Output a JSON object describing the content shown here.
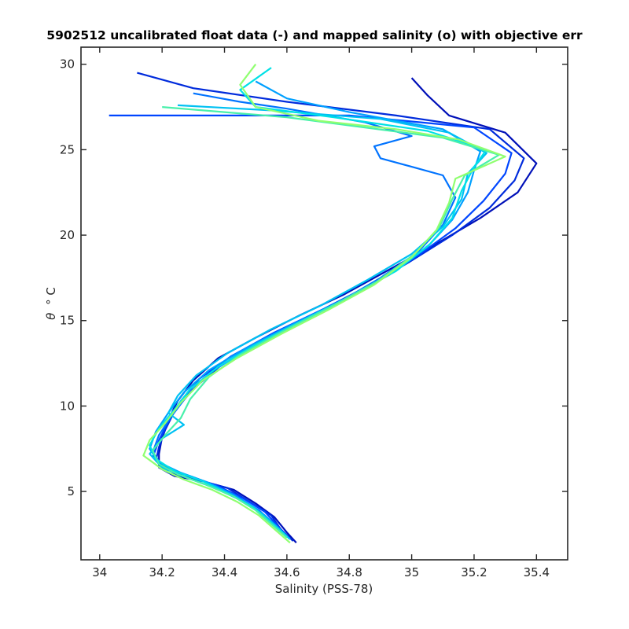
{
  "chart_data": {
    "type": "line",
    "title": "5902512 uncalibrated float data (-) and mapped salinity (o) with objective err",
    "xlabel": "Salinity (PSS-78)",
    "ylabel_symbol": "θ",
    "ylabel_unit": "° C",
    "xlim": [
      33.94,
      35.5
    ],
    "ylim": [
      1,
      31
    ],
    "xticks": [
      34,
      34.2,
      34.4,
      34.6,
      34.8,
      35,
      35.2,
      35.4
    ],
    "xtick_labels": [
      "34",
      "34.2",
      "34.4",
      "34.6",
      "34.8",
      "35",
      "35.2",
      "35.4"
    ],
    "yticks": [
      5,
      10,
      15,
      20,
      25,
      30
    ],
    "ytick_labels": [
      "5",
      "10",
      "15",
      "20",
      "25",
      "30"
    ],
    "grid": false,
    "legend": "none",
    "colormap": "jet (dark blue → cyan → light green, one color per profile)",
    "colors": {
      "first_profile": "#0010b8",
      "middle_profile": "#00c8ff",
      "last_profile": "#90ff70"
    },
    "series": [
      {
        "values_xy": [
          [
            34.63,
            2.0
          ],
          [
            34.6,
            2.6
          ],
          [
            34.56,
            3.5
          ],
          [
            34.5,
            4.3
          ],
          [
            34.43,
            5.1
          ],
          [
            34.33,
            5.6
          ],
          [
            34.24,
            5.9
          ],
          [
            34.19,
            6.4
          ],
          [
            34.19,
            7.2
          ],
          [
            34.2,
            8.2
          ],
          [
            34.22,
            9.2
          ],
          [
            34.25,
            10.3
          ],
          [
            34.3,
            11.5
          ],
          [
            34.38,
            12.8
          ],
          [
            34.5,
            14.0
          ],
          [
            34.64,
            15.3
          ],
          [
            34.78,
            16.5
          ],
          [
            34.93,
            18.0
          ],
          [
            35.08,
            19.5
          ],
          [
            35.22,
            21.0
          ],
          [
            35.34,
            22.5
          ],
          [
            35.4,
            24.2
          ],
          [
            35.3,
            26.0
          ],
          [
            35.12,
            27.0
          ],
          [
            35.05,
            28.2
          ],
          [
            35.0,
            29.2
          ]
        ]
      },
      {
        "values_xy": [
          [
            34.62,
            2.1
          ],
          [
            34.58,
            2.8
          ],
          [
            34.55,
            3.6
          ],
          [
            34.48,
            4.4
          ],
          [
            34.41,
            5.2
          ],
          [
            34.31,
            5.7
          ],
          [
            34.22,
            6.1
          ],
          [
            34.18,
            6.8
          ],
          [
            34.19,
            7.6
          ],
          [
            34.21,
            8.6
          ],
          [
            34.24,
            9.7
          ],
          [
            34.3,
            11.0
          ],
          [
            34.39,
            12.4
          ],
          [
            34.52,
            13.8
          ],
          [
            34.68,
            15.3
          ],
          [
            34.84,
            16.8
          ],
          [
            34.99,
            18.4
          ],
          [
            35.13,
            20.0
          ],
          [
            35.25,
            21.6
          ],
          [
            35.33,
            23.2
          ],
          [
            35.36,
            24.5
          ],
          [
            35.25,
            26.2
          ],
          [
            34.95,
            27.0
          ],
          [
            34.6,
            27.8
          ],
          [
            34.3,
            28.6
          ],
          [
            34.12,
            29.5
          ]
        ]
      },
      {
        "values_xy": [
          [
            34.61,
            2.2
          ],
          [
            34.57,
            3.0
          ],
          [
            34.53,
            3.8
          ],
          [
            34.46,
            4.6
          ],
          [
            34.38,
            5.3
          ],
          [
            34.29,
            5.9
          ],
          [
            34.21,
            6.3
          ],
          [
            34.17,
            7.0
          ],
          [
            34.19,
            8.0
          ],
          [
            34.22,
            9.1
          ],
          [
            34.26,
            10.3
          ],
          [
            34.32,
            11.6
          ],
          [
            34.42,
            12.9
          ],
          [
            34.56,
            14.3
          ],
          [
            34.72,
            15.7
          ],
          [
            34.88,
            17.2
          ],
          [
            35.02,
            18.8
          ],
          [
            35.14,
            20.4
          ],
          [
            35.23,
            22.0
          ],
          [
            35.3,
            23.6
          ],
          [
            35.32,
            24.8
          ],
          [
            35.2,
            26.3
          ],
          [
            34.8,
            27.0
          ],
          [
            34.4,
            27.0
          ],
          [
            34.03,
            27.0
          ]
        ]
      },
      {
        "values_xy": [
          [
            34.6,
            2.3
          ],
          [
            34.56,
            3.1
          ],
          [
            34.51,
            3.9
          ],
          [
            34.44,
            4.7
          ],
          [
            34.36,
            5.4
          ],
          [
            34.27,
            6.0
          ],
          [
            34.2,
            6.5
          ],
          [
            34.17,
            7.3
          ],
          [
            34.19,
            8.3
          ],
          [
            34.23,
            9.4
          ],
          [
            34.28,
            10.6
          ],
          [
            34.35,
            11.9
          ],
          [
            34.46,
            13.2
          ],
          [
            34.6,
            14.6
          ],
          [
            34.76,
            16.0
          ],
          [
            34.9,
            17.5
          ],
          [
            35.02,
            19.0
          ],
          [
            35.1,
            20.6
          ],
          [
            35.14,
            22.2
          ],
          [
            35.1,
            23.5
          ],
          [
            35.0,
            24.0
          ],
          [
            34.9,
            24.5
          ],
          [
            34.88,
            25.2
          ],
          [
            35.0,
            25.8
          ],
          [
            34.85,
            26.6
          ],
          [
            34.6,
            27.4
          ],
          [
            34.45,
            27.8
          ],
          [
            34.3,
            28.3
          ]
        ]
      },
      {
        "values_xy": [
          [
            34.6,
            2.4
          ],
          [
            34.55,
            3.2
          ],
          [
            34.5,
            4.0
          ],
          [
            34.43,
            4.8
          ],
          [
            34.35,
            5.5
          ],
          [
            34.26,
            6.1
          ],
          [
            34.19,
            6.7
          ],
          [
            34.16,
            7.5
          ],
          [
            34.18,
            8.5
          ],
          [
            34.22,
            9.6
          ],
          [
            34.27,
            10.8
          ],
          [
            34.35,
            12.1
          ],
          [
            34.47,
            13.4
          ],
          [
            34.62,
            14.8
          ],
          [
            34.78,
            16.2
          ],
          [
            34.93,
            17.7
          ],
          [
            35.05,
            19.3
          ],
          [
            35.13,
            20.9
          ],
          [
            35.18,
            22.5
          ],
          [
            35.2,
            23.8
          ],
          [
            35.22,
            24.9
          ],
          [
            35.1,
            26.2
          ],
          [
            34.8,
            27.2
          ],
          [
            34.6,
            28.0
          ],
          [
            34.5,
            29.0
          ]
        ]
      },
      {
        "values_xy": [
          [
            34.61,
            2.2
          ],
          [
            34.57,
            2.9
          ],
          [
            34.52,
            3.7
          ],
          [
            34.45,
            4.5
          ],
          [
            34.37,
            5.2
          ],
          [
            34.28,
            5.8
          ],
          [
            34.2,
            6.4
          ],
          [
            34.16,
            7.2
          ],
          [
            34.2,
            8.1
          ],
          [
            34.27,
            8.9
          ],
          [
            34.22,
            9.6
          ],
          [
            34.25,
            10.6
          ],
          [
            34.31,
            11.8
          ],
          [
            34.41,
            13.1
          ],
          [
            34.55,
            14.5
          ],
          [
            34.71,
            15.9
          ],
          [
            34.86,
            17.4
          ],
          [
            35.0,
            18.9
          ],
          [
            35.1,
            20.5
          ],
          [
            35.16,
            22.1
          ],
          [
            35.18,
            23.6
          ],
          [
            35.24,
            24.8
          ],
          [
            35.12,
            26.0
          ],
          [
            34.9,
            26.8
          ],
          [
            34.55,
            27.3
          ],
          [
            34.25,
            27.6
          ]
        ]
      },
      {
        "values_xy": [
          [
            34.59,
            2.5
          ],
          [
            34.54,
            3.3
          ],
          [
            34.49,
            4.1
          ],
          [
            34.41,
            4.9
          ],
          [
            34.33,
            5.6
          ],
          [
            34.24,
            6.2
          ],
          [
            34.18,
            6.9
          ],
          [
            34.16,
            7.7
          ],
          [
            34.19,
            8.7
          ],
          [
            34.24,
            9.8
          ],
          [
            34.29,
            11.0
          ],
          [
            34.38,
            12.3
          ],
          [
            34.5,
            13.6
          ],
          [
            34.65,
            15.0
          ],
          [
            34.8,
            16.4
          ],
          [
            34.95,
            17.9
          ],
          [
            35.06,
            19.5
          ],
          [
            35.13,
            21.0
          ],
          [
            35.16,
            22.6
          ],
          [
            35.2,
            24.0
          ],
          [
            35.24,
            25.0
          ],
          [
            35.05,
            26.1
          ],
          [
            34.75,
            26.9
          ],
          [
            34.5,
            27.5
          ],
          [
            34.45,
            28.5
          ],
          [
            34.55,
            29.8
          ]
        ]
      },
      {
        "values_xy": [
          [
            34.6,
            2.3
          ],
          [
            34.55,
            3.1
          ],
          [
            34.5,
            3.9
          ],
          [
            34.43,
            4.7
          ],
          [
            34.34,
            5.4
          ],
          [
            34.25,
            6.0
          ],
          [
            34.19,
            6.6
          ],
          [
            34.17,
            7.4
          ],
          [
            34.21,
            8.3
          ],
          [
            34.26,
            9.3
          ],
          [
            34.29,
            10.4
          ],
          [
            34.35,
            11.7
          ],
          [
            34.45,
            13.0
          ],
          [
            34.59,
            14.4
          ],
          [
            34.74,
            15.8
          ],
          [
            34.89,
            17.3
          ],
          [
            35.01,
            18.9
          ],
          [
            35.09,
            20.5
          ],
          [
            35.13,
            22.1
          ],
          [
            35.17,
            23.5
          ],
          [
            35.28,
            24.7
          ],
          [
            35.1,
            25.7
          ],
          [
            34.85,
            26.3
          ],
          [
            34.6,
            26.9
          ],
          [
            34.4,
            27.2
          ],
          [
            34.2,
            27.5
          ]
        ]
      },
      {
        "values_xy": [
          [
            34.61,
            2.0
          ],
          [
            34.56,
            2.8
          ],
          [
            34.51,
            3.6
          ],
          [
            34.44,
            4.4
          ],
          [
            34.36,
            5.1
          ],
          [
            34.27,
            5.7
          ],
          [
            34.2,
            6.3
          ],
          [
            34.14,
            7.1
          ],
          [
            34.16,
            8.0
          ],
          [
            34.21,
            9.0
          ],
          [
            34.26,
            10.2
          ],
          [
            34.33,
            11.5
          ],
          [
            34.44,
            12.8
          ],
          [
            34.58,
            14.2
          ],
          [
            34.73,
            15.6
          ],
          [
            34.88,
            17.1
          ],
          [
            35.0,
            18.7
          ],
          [
            35.08,
            20.3
          ],
          [
            35.12,
            21.9
          ],
          [
            35.14,
            23.3
          ],
          [
            35.3,
            24.6
          ],
          [
            35.15,
            25.6
          ],
          [
            34.95,
            26.2
          ],
          [
            34.7,
            26.7
          ],
          [
            34.5,
            27.5
          ],
          [
            34.45,
            28.8
          ],
          [
            34.5,
            30.0
          ]
        ]
      }
    ]
  }
}
